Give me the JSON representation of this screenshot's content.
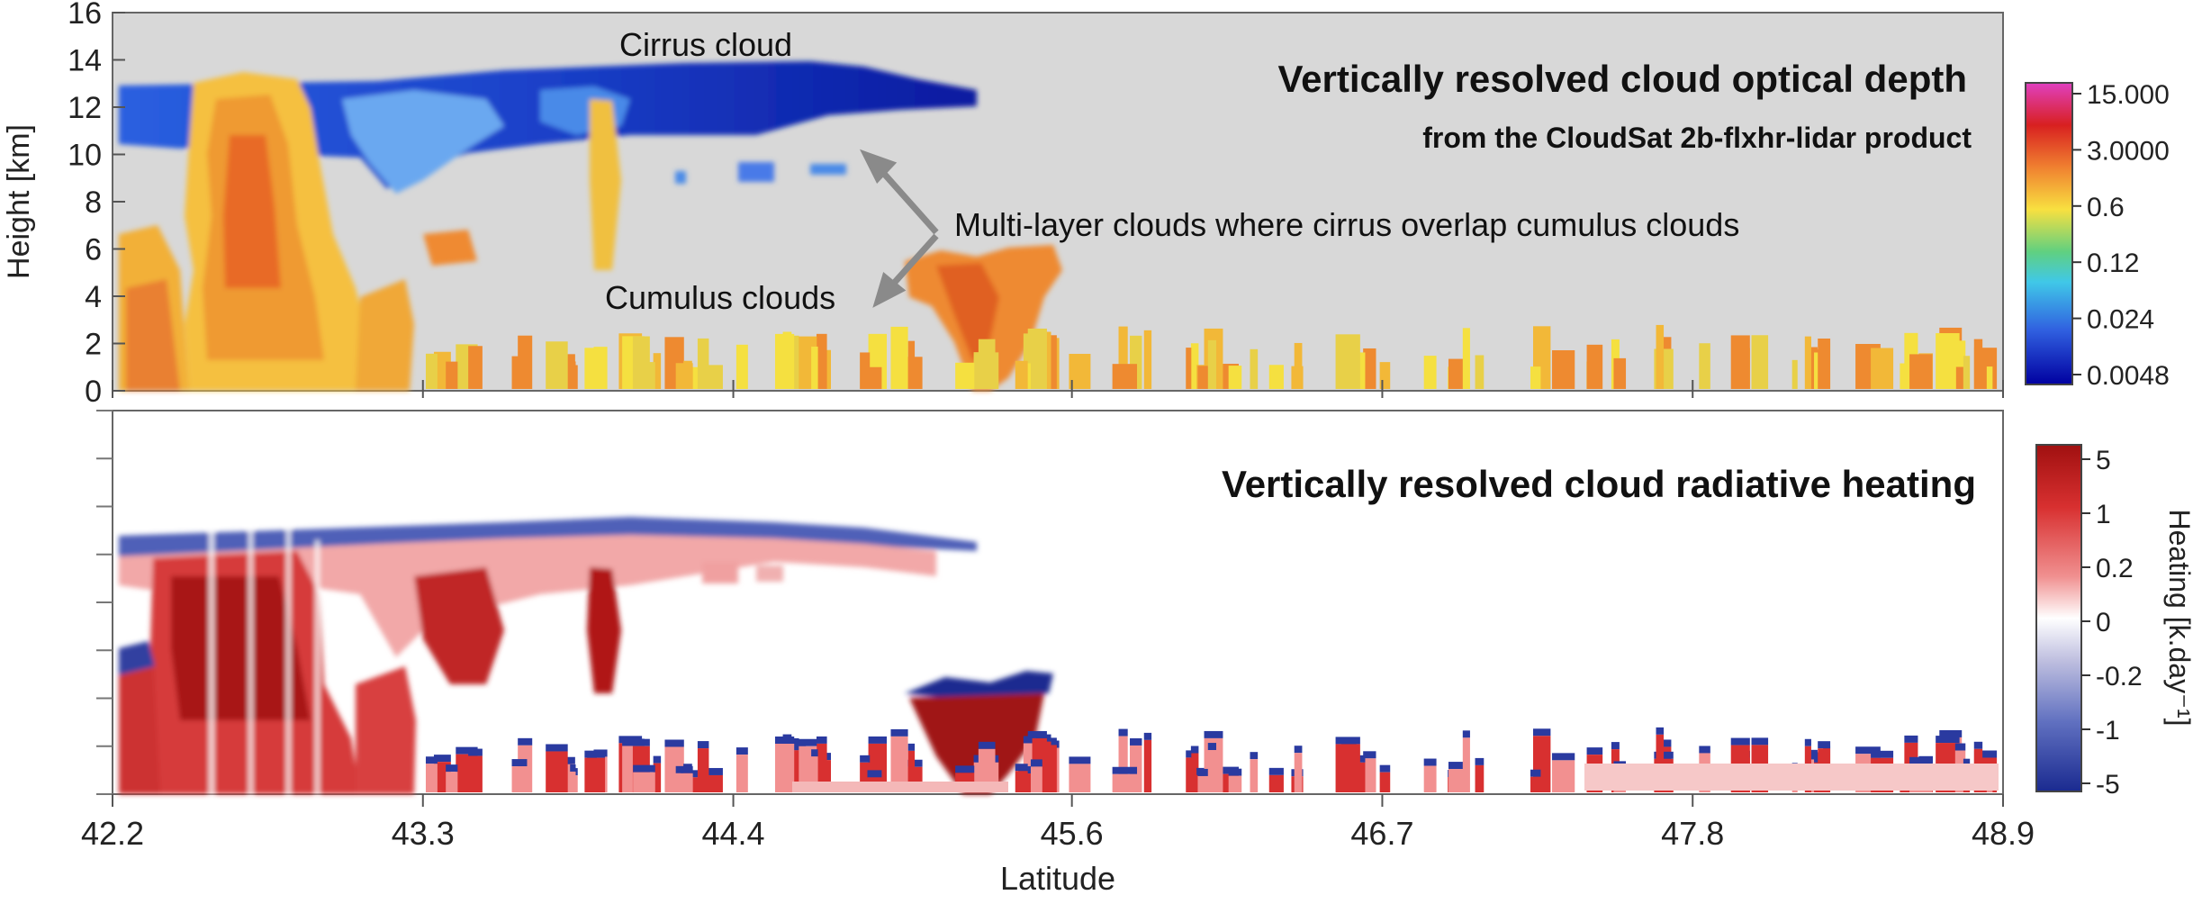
{
  "chart_data": [
    {
      "type": "heatmap",
      "title": "Vertically resolved cloud optical depth",
      "subtitle": "from the CloudSat 2b-flxhr-lidar product",
      "ylabel": "Height [km]",
      "xlabel": "",
      "xlim": [
        42.2,
        48.9
      ],
      "ylim": [
        0,
        16
      ],
      "yticks": [
        "0",
        "2",
        "4",
        "6",
        "8",
        "10",
        "12",
        "14",
        "16"
      ],
      "background_color": "#d8d8d8",
      "colorbar": {
        "scale": "log",
        "tick_labels": [
          "15.000",
          "3.0000",
          "0.6",
          "0.12",
          "0.024",
          "0.0048"
        ],
        "colors": [
          "#e040c0",
          "#d82020",
          "#f08030",
          "#f8e040",
          "#60d080",
          "#40c8e8",
          "#3060e0",
          "#0000a0"
        ]
      },
      "annotations": [
        {
          "text": "Cirrus cloud",
          "x": 43.8,
          "y": 13.6
        },
        {
          "text": "Multi-layer clouds where cirrus overlap cumulus clouds",
          "x": 45.9,
          "y": 6.8
        },
        {
          "text": "Cumulus clouds",
          "x": 44.1,
          "y": 3.6
        }
      ],
      "cloud_regions": [
        {
          "name": "cirrus",
          "lat": [
            42.2,
            45.3
          ],
          "height": [
            9.8,
            13.6
          ]
        },
        {
          "name": "deep-convective",
          "lat": [
            42.5,
            43.0
          ],
          "height": [
            0,
            13.2
          ]
        },
        {
          "name": "cumulus",
          "lat": [
            44.9,
            45.5
          ],
          "height": [
            0.5,
            6.2
          ]
        },
        {
          "name": "shallow-cumulus",
          "lat": [
            42.2,
            48.9
          ],
          "height": [
            0,
            2.5
          ]
        }
      ]
    },
    {
      "type": "heatmap",
      "title": "Vertically resolved cloud radiative heating",
      "xlabel": "Latitude",
      "xticks": [
        "42.2",
        "43.3",
        "44.4",
        "45.6",
        "46.7",
        "47.8",
        "48.9"
      ],
      "xlim": [
        42.2,
        48.9
      ],
      "ylim": [
        0,
        16
      ],
      "colorbar": {
        "label": "Heating [k.day⁻¹]",
        "tick_labels": [
          "5",
          "1",
          "0.2",
          "0",
          "-0.2",
          "-1",
          "-5"
        ],
        "colors": [
          "#a01010",
          "#d83030",
          "#f09090",
          "#ffffff",
          "#c0c0e0",
          "#6070c0",
          "#1a2a90"
        ]
      }
    }
  ]
}
